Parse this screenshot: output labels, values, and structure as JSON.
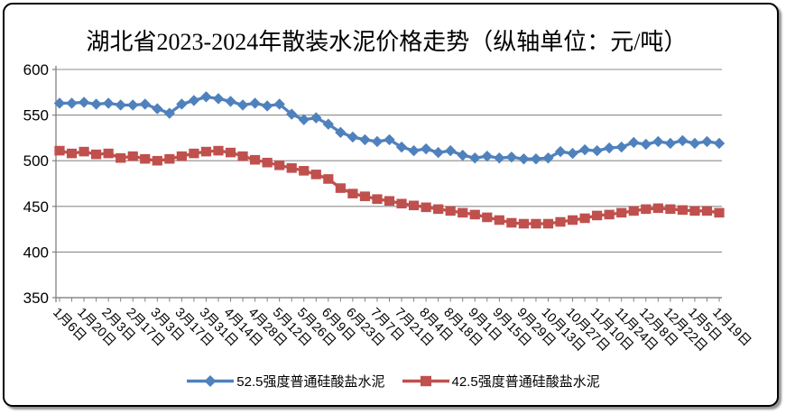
{
  "chart_data": {
    "type": "line",
    "title": "湖北省2023-2024年散装水泥价格走势（纵轴单位：元/吨）",
    "y_axis": {
      "min": 350,
      "max": 600,
      "step": 50,
      "unit": "元/吨",
      "tick_labels": [
        "350",
        "400",
        "450",
        "500",
        "550",
        "600"
      ]
    },
    "x_labels": [
      "1月6日",
      "1月20日",
      "2月3日",
      "2月17日",
      "3月3日",
      "3月17日",
      "3月31日",
      "4月14日",
      "4月28日",
      "5月12日",
      "5月26日",
      "6月9日",
      "6月23日",
      "7月7日",
      "7月21日",
      "8月4日",
      "8月18日",
      "9月1日",
      "9月15日",
      "9月29日",
      "10月13日",
      "10月27日",
      "11月10日",
      "11月24日",
      "12月8日",
      "12月22日",
      "1月5日",
      "1月19日"
    ],
    "x_label_every_nth_point": 2,
    "points_per_series": 55,
    "grid": "horizontal-only",
    "legend_position": "bottom",
    "colors": {
      "axis": "#808080",
      "gridline": "#8c8c8c",
      "text": "#000000"
    },
    "series": [
      {
        "name": "52.5强度普通硅酸盐水泥",
        "color": "#4F81BD",
        "marker": "diamond",
        "values": [
          563,
          563,
          564,
          562,
          563,
          561,
          561,
          562,
          557,
          552,
          562,
          566,
          570,
          568,
          565,
          561,
          563,
          560,
          562,
          551,
          545,
          547,
          540,
          531,
          526,
          523,
          521,
          523,
          515,
          511,
          513,
          509,
          511,
          506,
          503,
          505,
          503,
          504,
          502,
          502,
          503,
          510,
          508,
          512,
          511,
          514,
          515,
          520,
          518,
          521,
          519,
          522,
          519,
          521,
          519
        ]
      },
      {
        "name": "42.5强度普通硅酸盐水泥",
        "color": "#C0504D",
        "marker": "square",
        "values": [
          511,
          508,
          510,
          507,
          508,
          503,
          505,
          502,
          500,
          502,
          505,
          508,
          510,
          511,
          509,
          505,
          501,
          498,
          495,
          492,
          489,
          485,
          480,
          470,
          464,
          461,
          458,
          456,
          453,
          451,
          449,
          447,
          445,
          443,
          441,
          438,
          435,
          432,
          431,
          431,
          431,
          433,
          435,
          437,
          440,
          441,
          443,
          445,
          447,
          448,
          447,
          446,
          445,
          445,
          443
        ]
      }
    ]
  }
}
